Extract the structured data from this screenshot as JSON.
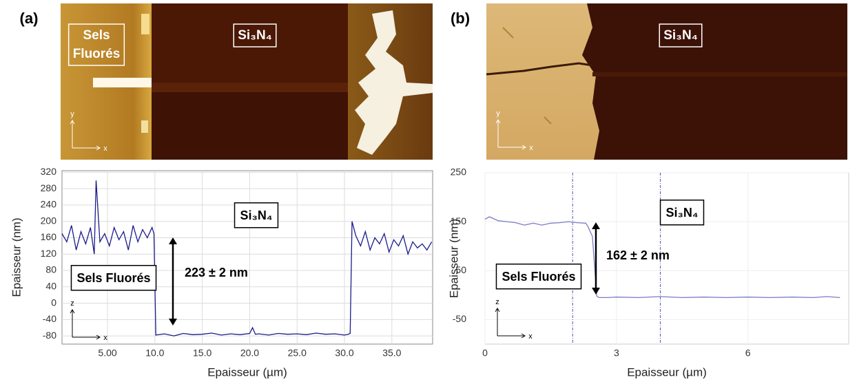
{
  "chart_data": [
    {
      "type": "line",
      "panel_label": "(a)",
      "x_label": "Epaisseur (µm)",
      "y_label": "Epaisseur (nm)",
      "xlim": [
        0.2,
        39.3
      ],
      "xticks": [
        {
          "value": 5,
          "label": "5.00"
        },
        {
          "value": 10,
          "label": "10.0"
        },
        {
          "value": 15,
          "label": "15.0"
        },
        {
          "value": 20,
          "label": "20.0"
        },
        {
          "value": 25,
          "label": "25.0"
        },
        {
          "value": 30,
          "label": "30.0"
        },
        {
          "value": 35,
          "label": "35.0"
        }
      ],
      "ylim": [
        -100,
        324
      ],
      "yticks": [
        -80,
        -40,
        0,
        40,
        80,
        120,
        160,
        200,
        240,
        280,
        320
      ],
      "grid": true,
      "series": [
        {
          "color": "#1a1a8c",
          "x": [
            0.2,
            0.7,
            1.2,
            1.7,
            2.2,
            2.7,
            3.2,
            3.6,
            3.8,
            4.2,
            4.7,
            5.2,
            5.7,
            6.2,
            6.7,
            7.2,
            7.7,
            8.2,
            8.7,
            9.2,
            9.7,
            9.9,
            10.1,
            11,
            12,
            13,
            14,
            15,
            16,
            17,
            18,
            19,
            20,
            20.3,
            20.6,
            21,
            22,
            23,
            24,
            25,
            26,
            27,
            28,
            29,
            30,
            30.4,
            30.6,
            30.8,
            31.2,
            31.7,
            32.2,
            32.7,
            33.2,
            33.7,
            34.2,
            34.7,
            35.2,
            35.7,
            36.2,
            36.7,
            37.2,
            37.7,
            38.2,
            38.7,
            39.2
          ],
          "values": [
            170,
            150,
            190,
            130,
            175,
            145,
            185,
            120,
            300,
            150,
            170,
            140,
            185,
            155,
            175,
            130,
            190,
            150,
            180,
            160,
            185,
            170,
            -78,
            -75,
            -80,
            -74,
            -77,
            -76,
            -73,
            -78,
            -75,
            -77,
            -74,
            -60,
            -76,
            -75,
            -78,
            -74,
            -76,
            -75,
            -77,
            -73,
            -76,
            -75,
            -78,
            -76,
            -74,
            200,
            165,
            140,
            175,
            130,
            160,
            145,
            170,
            125,
            155,
            140,
            165,
            120,
            150,
            135,
            145,
            130,
            150
          ]
        }
      ],
      "annotations": [
        "Si₃N₄",
        "Sels Fluorés",
        "223 ± 2 nm"
      ],
      "axis_markers": [
        "z",
        "x"
      ]
    },
    {
      "type": "line",
      "panel_label": "(b)",
      "x_label": "Epaisseur (µm)",
      "y_label": "Epaisseur (nm)",
      "xlim": [
        0,
        8.3
      ],
      "xticks": [
        0,
        3,
        6
      ],
      "ylim": [
        -100,
        250
      ],
      "yticks": [
        -50,
        50,
        150,
        250
      ],
      "grid": true,
      "cursors": [
        2.0,
        4.0
      ],
      "series": [
        {
          "color": "#7a7ac8",
          "x": [
            0,
            0.1,
            0.3,
            0.5,
            0.7,
            0.9,
            1.1,
            1.3,
            1.5,
            1.7,
            1.9,
            2.1,
            2.3,
            2.35,
            2.45,
            2.5,
            2.55,
            2.6,
            2.8,
            3.0,
            3.5,
            4.0,
            4.5,
            5.0,
            5.5,
            6.0,
            6.5,
            7.0,
            7.5,
            7.8,
            8.1
          ],
          "values": [
            155,
            160,
            152,
            150,
            148,
            143,
            147,
            143,
            147,
            148,
            150,
            148,
            147,
            140,
            120,
            60,
            -2,
            -5,
            -5,
            -4,
            -5,
            -3,
            -5,
            -4,
            -5,
            -4,
            -5,
            -4,
            -5,
            -3,
            -5
          ]
        }
      ],
      "annotations": [
        "Si₃N₄",
        "Sels Fluorés",
        "162 ± 2 nm"
      ],
      "axis_markers": [
        "z",
        "x"
      ]
    }
  ],
  "images": [
    {
      "labels": [
        [
          "Sels",
          "Fluorés"
        ],
        "Si₃N₄"
      ],
      "axis_markers": [
        "y",
        "x"
      ]
    },
    {
      "labels": [
        "Si₃N₄"
      ],
      "axis_markers": [
        "y",
        "x"
      ]
    }
  ]
}
